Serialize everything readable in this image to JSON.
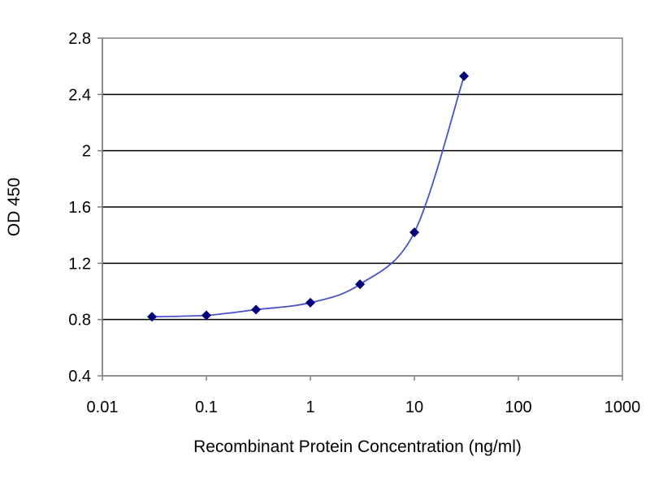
{
  "chart_data": {
    "type": "scatter",
    "title": "",
    "xlabel": "Recombinant Protein Concentration (ng/ml)",
    "ylabel": "OD 450",
    "x_scale": "log",
    "xlim": [
      0.01,
      1000
    ],
    "ylim": [
      0.4,
      2.8
    ],
    "x_ticks": [
      "0.01",
      "0.1",
      "1",
      "10",
      "100",
      "1000"
    ],
    "y_ticks": [
      "0.4",
      "0.8",
      "1.2",
      "1.6",
      "2",
      "2.4",
      "2.8"
    ],
    "grid": "horizontal",
    "legend": "none",
    "series": [
      {
        "x": [
          0.03,
          0.1,
          0.3,
          1,
          3,
          10,
          30
        ],
        "y": [
          0.82,
          0.83,
          0.87,
          0.92,
          1.05,
          1.42,
          2.53
        ],
        "marker": "diamond",
        "color": "#00007a",
        "line_color": "#4a52c8"
      }
    ],
    "colors": {
      "plot_border": "#808080",
      "gridline": "#000000"
    }
  }
}
